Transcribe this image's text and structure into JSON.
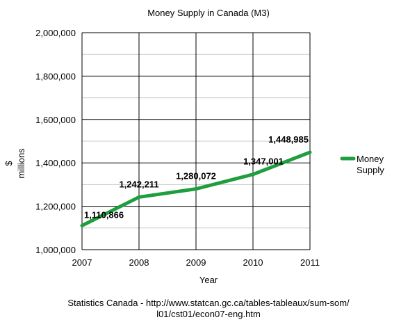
{
  "chart_data": {
    "type": "line",
    "title": "Money Supply in Canada (M3)",
    "xlabel": "Year",
    "ylabel_lines": [
      "$",
      "millions"
    ],
    "x": [
      2007,
      2008,
      2009,
      2010,
      2011
    ],
    "ylim": [
      1000000,
      2000000
    ],
    "y_ticks": [
      1000000,
      1200000,
      1400000,
      1600000,
      1800000,
      2000000
    ],
    "y_tick_labels": [
      "1,000,000",
      "1,200,000",
      "1,400,000",
      "1,600,000",
      "1,800,000",
      "2,000,000"
    ],
    "x_tick_labels": [
      "2007",
      "2008",
      "2009",
      "2010",
      "2011"
    ],
    "grid": true,
    "legend_position": "right",
    "series": [
      {
        "name": "Money Supply",
        "legend_lines": [
          "Money",
          "Supply"
        ],
        "color": "#1e9e3e",
        "values": [
          1110866,
          1242211,
          1280072,
          1347001,
          1448985
        ],
        "data_labels": [
          "1,110,866",
          "1,242,211",
          "1,280,072",
          "1,347,001",
          "1,448,985"
        ]
      }
    ],
    "source_lines": [
      "Statistics Canada - http://www.statcan.gc.ca/tables-tableaux/sum-som/",
      "l01/cst01/econ07-eng.htm"
    ]
  }
}
